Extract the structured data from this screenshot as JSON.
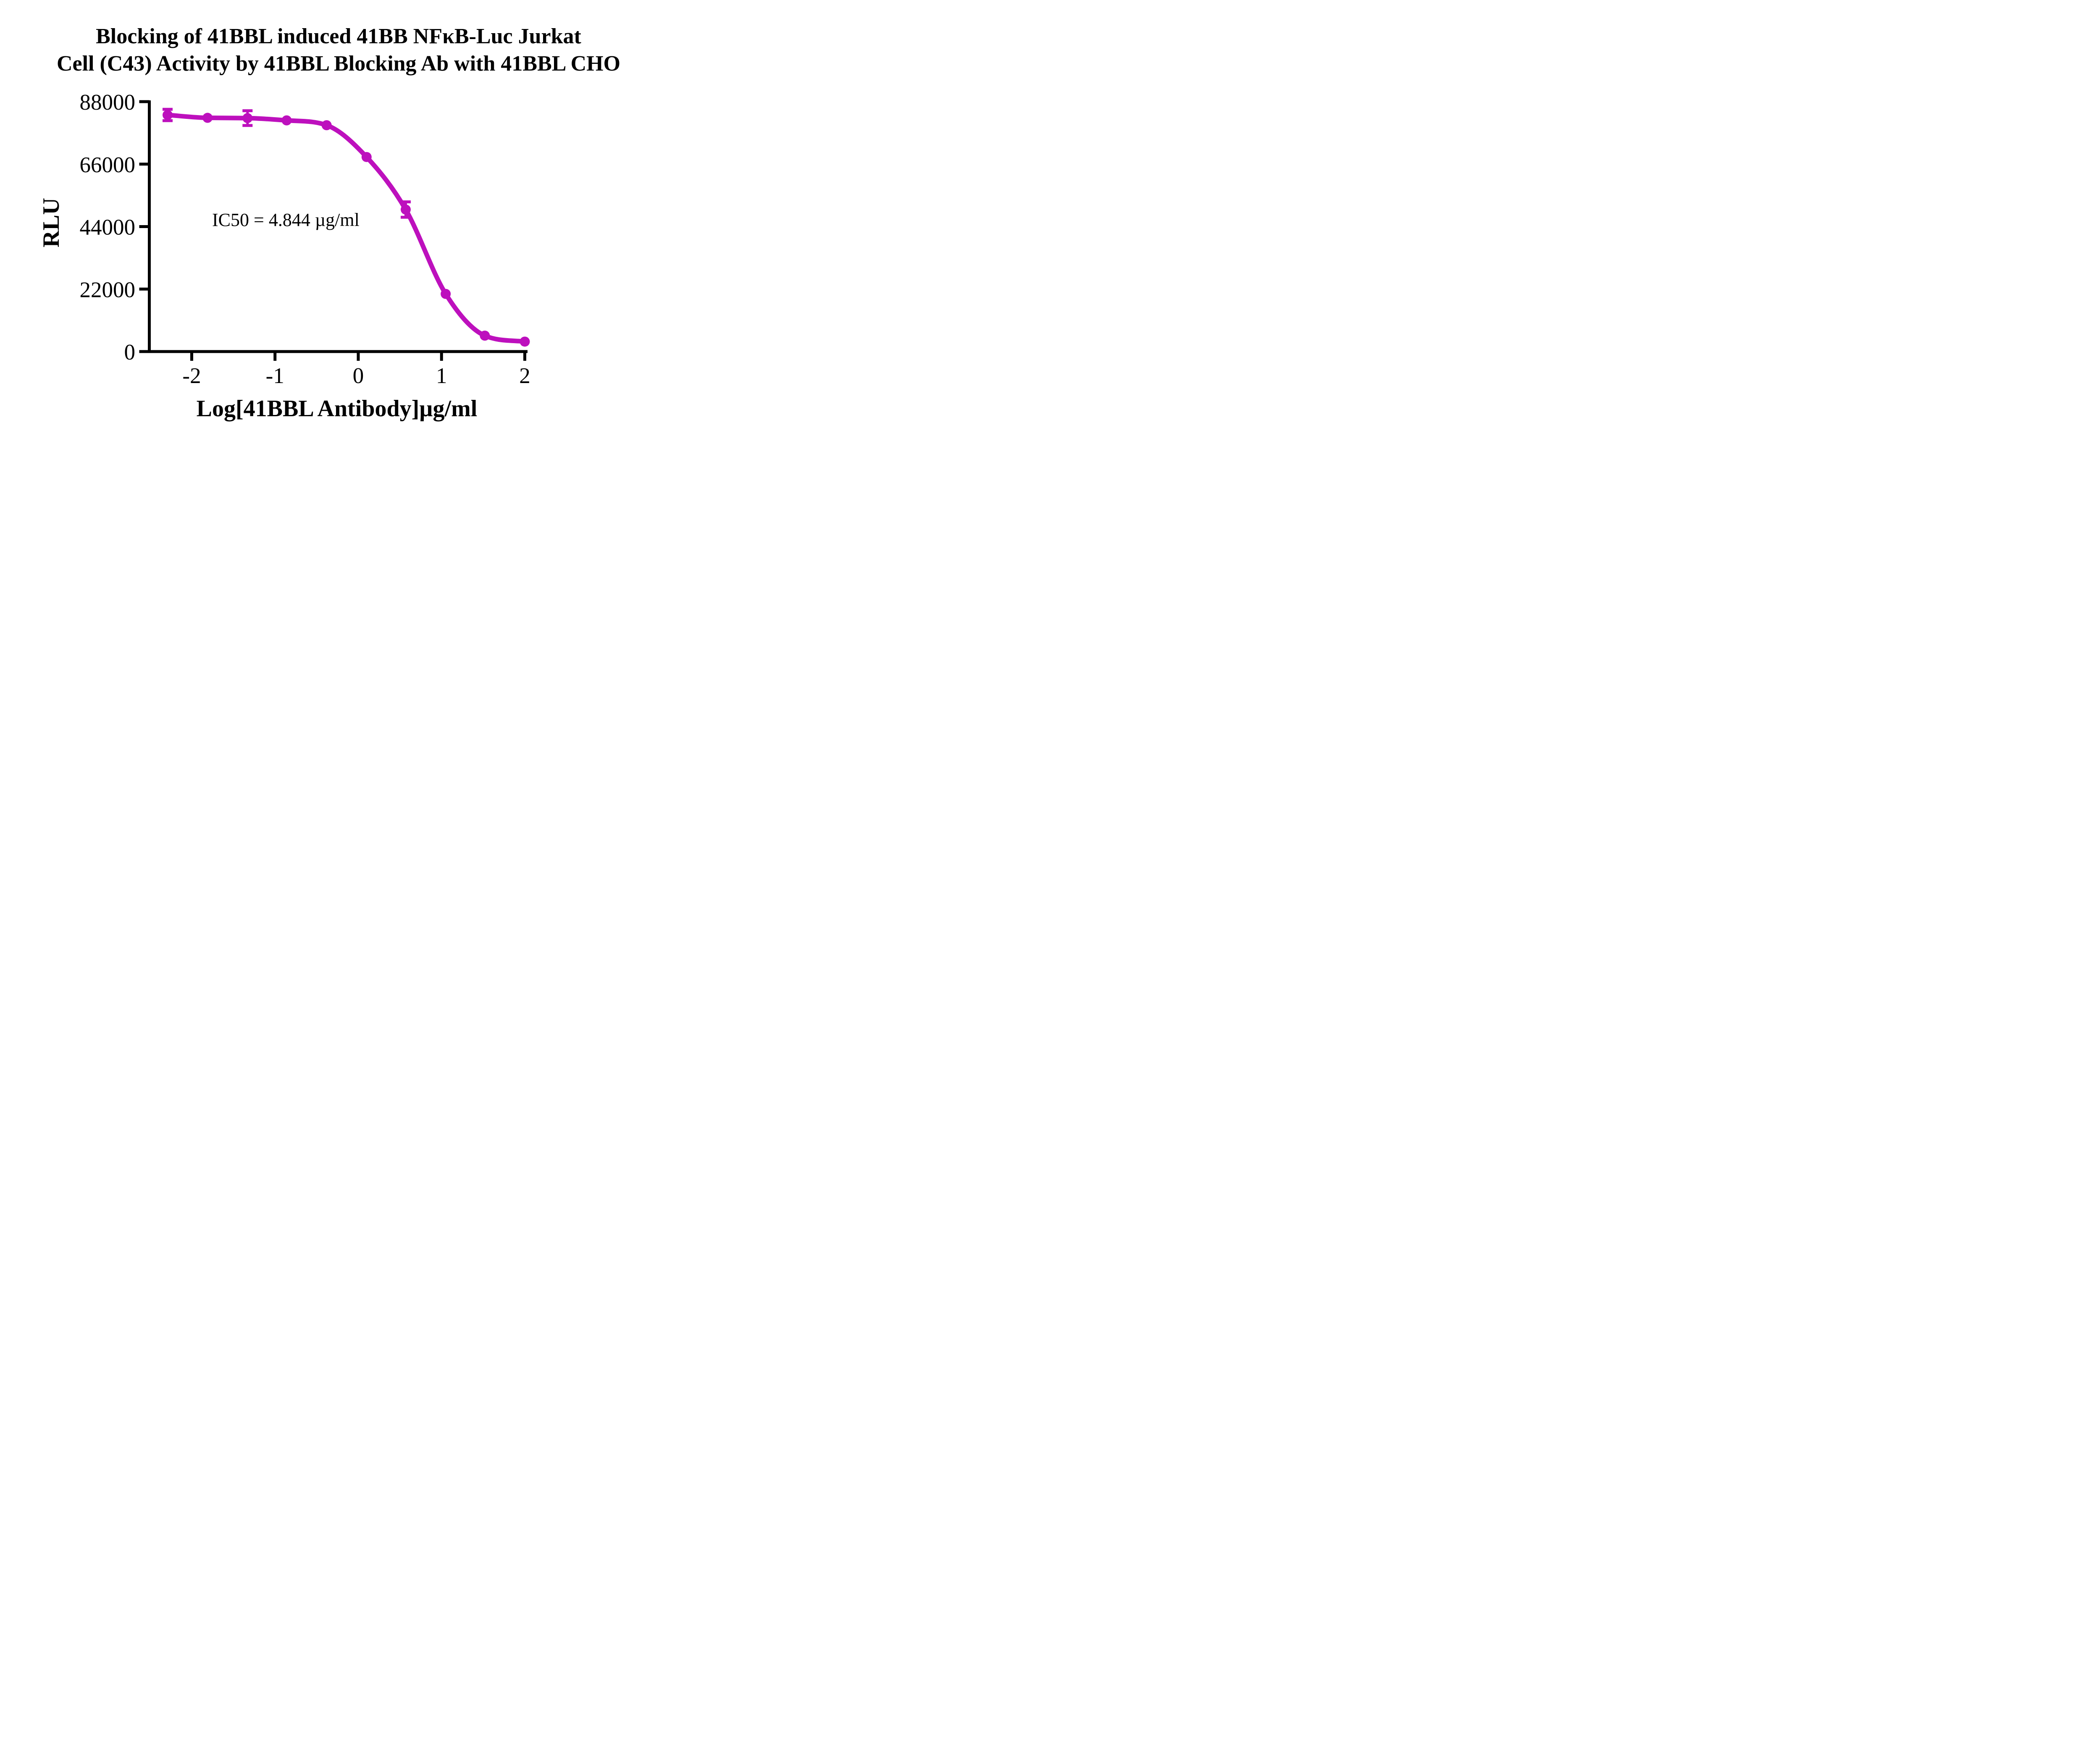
{
  "chart_data": {
    "type": "line",
    "subtype": "dose-response-inhibition",
    "title_lines": [
      "Blocking of 41BBL induced 41BB NFκB-Luc Jurkat",
      "Cell (C43) Activity by 41BBL Blocking Ab with 41BBL CHO"
    ],
    "title": "Blocking of 41BBL induced 41BB NFκB-Luc Jurkat Cell (C43) Activity by 41BBL Blocking Ab with 41BBL CHO",
    "xlabel": "Log[41BBL Antibody]µg/ml",
    "ylabel": "RLU",
    "annotation": "IC50 = 4.844 µg/ml",
    "ic50_ug_ml": 4.844,
    "x_ticks": [
      -2,
      -1,
      0,
      1,
      2
    ],
    "x_tick_labels": [
      "-2",
      "-1",
      "0",
      "1",
      "2"
    ],
    "y_ticks": [
      0,
      22000,
      44000,
      66000,
      88000
    ],
    "y_tick_labels": [
      "0",
      "22000",
      "44000",
      "66000",
      "88000"
    ],
    "xlim": [
      -2.51,
      2.03
    ],
    "ylim": [
      0,
      88000
    ],
    "grid": false,
    "legend": "none",
    "colors": {
      "series": "#BD10BD",
      "axis": "#000000",
      "background": "#FFFFFF"
    },
    "series": [
      {
        "name": "41BBL Blocking Ab",
        "marker": "circle",
        "points": [
          {
            "x": -2.29,
            "y": 83300,
            "err": 2000
          },
          {
            "x": -1.81,
            "y": 82300,
            "err": 0
          },
          {
            "x": -1.33,
            "y": 82200,
            "err": 2600
          },
          {
            "x": -0.86,
            "y": 81400,
            "err": 0
          },
          {
            "x": -0.38,
            "y": 79700,
            "err": 0
          },
          {
            "x": 0.1,
            "y": 68500,
            "err": 0
          },
          {
            "x": 0.57,
            "y": 50000,
            "err": 2700
          },
          {
            "x": 1.05,
            "y": 20300,
            "err": 0
          },
          {
            "x": 1.52,
            "y": 5600,
            "err": 0
          },
          {
            "x": 2.0,
            "y": 3500,
            "err": 0
          }
        ]
      }
    ]
  }
}
